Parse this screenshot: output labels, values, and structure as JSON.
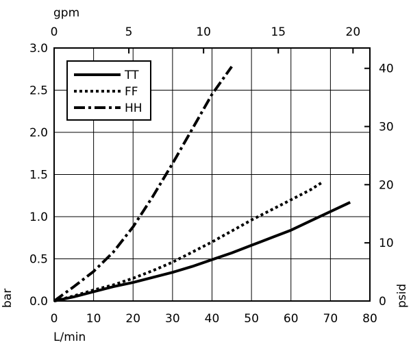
{
  "chart_data": {
    "type": "line",
    "title": "",
    "xlabel": "L/min",
    "x2label": "gpm",
    "ylabel": "bar",
    "y2label": "psid",
    "xlim": [
      0,
      80
    ],
    "ylim": [
      0,
      3.0
    ],
    "x2lim": [
      0,
      21.13
    ],
    "y2lim": [
      0,
      43.5
    ],
    "xticks": [
      0,
      10,
      20,
      30,
      40,
      50,
      60,
      70,
      80
    ],
    "yticks": [
      0.0,
      0.5,
      1.0,
      1.5,
      2.0,
      2.5,
      3.0
    ],
    "x2ticks": [
      0,
      5,
      10,
      15,
      20
    ],
    "y2ticks": [
      0,
      10,
      20,
      30,
      40
    ],
    "xtick_labels": [
      "0",
      "10",
      "20",
      "30",
      "40",
      "50",
      "60",
      "70",
      "80"
    ],
    "ytick_labels": [
      "0.0",
      "0.5",
      "1.0",
      "1.5",
      "2.0",
      "2.5",
      "3.0"
    ],
    "x2tick_labels": [
      "0",
      "5",
      "10",
      "15",
      "20"
    ],
    "y2tick_labels": [
      "0",
      "10",
      "20",
      "30",
      "40"
    ],
    "grid": true,
    "legend_position": "top-left",
    "series": [
      {
        "name": "TT",
        "style": "solid",
        "x": [
          0,
          5,
          10,
          15,
          20,
          25,
          30,
          35,
          40,
          45,
          50,
          55,
          60,
          65,
          70,
          75
        ],
        "y": [
          0,
          0.05,
          0.11,
          0.17,
          0.22,
          0.28,
          0.34,
          0.41,
          0.49,
          0.57,
          0.66,
          0.75,
          0.84,
          0.95,
          1.06,
          1.17
        ]
      },
      {
        "name": "FF",
        "style": "dotted",
        "x": [
          0,
          5,
          10,
          15,
          20,
          25,
          30,
          35,
          40,
          45,
          50,
          55,
          60,
          65,
          68
        ],
        "y": [
          0,
          0.06,
          0.13,
          0.19,
          0.27,
          0.36,
          0.46,
          0.58,
          0.7,
          0.83,
          0.96,
          1.08,
          1.2,
          1.32,
          1.41
        ]
      },
      {
        "name": "HH",
        "style": "dashdot",
        "x": [
          0,
          5,
          10,
          15,
          20,
          25,
          30,
          35,
          40,
          45
        ],
        "y": [
          0,
          0.17,
          0.35,
          0.58,
          0.88,
          1.24,
          1.63,
          2.04,
          2.45,
          2.78
        ]
      }
    ]
  }
}
